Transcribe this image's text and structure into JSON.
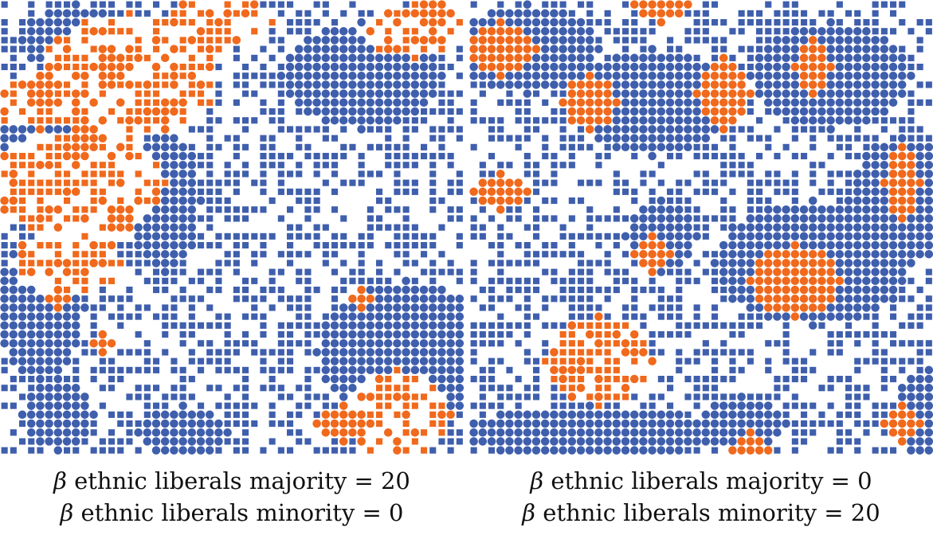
{
  "colors": {
    "majority": "#3f5fad",
    "minority": "#f0691c",
    "background": "#ffffff"
  },
  "legend_shapes": {
    "circle": "agent-with-preference-circle-icon",
    "square": "agent-square-icon"
  },
  "panels": [
    {
      "caption": {
        "line1": {
          "symbol": "β",
          "text": " ethnic liberals majority = 20"
        },
        "line2": {
          "symbol": "β",
          "text": " ethnic liberals minority = 0"
        }
      }
    },
    {
      "caption": {
        "line1": {
          "symbol": "β",
          "text": " ethnic liberals majority = 0"
        },
        "line2": {
          "symbol": "β",
          "text": " ethnic liberals minority = 20"
        }
      }
    }
  ]
}
